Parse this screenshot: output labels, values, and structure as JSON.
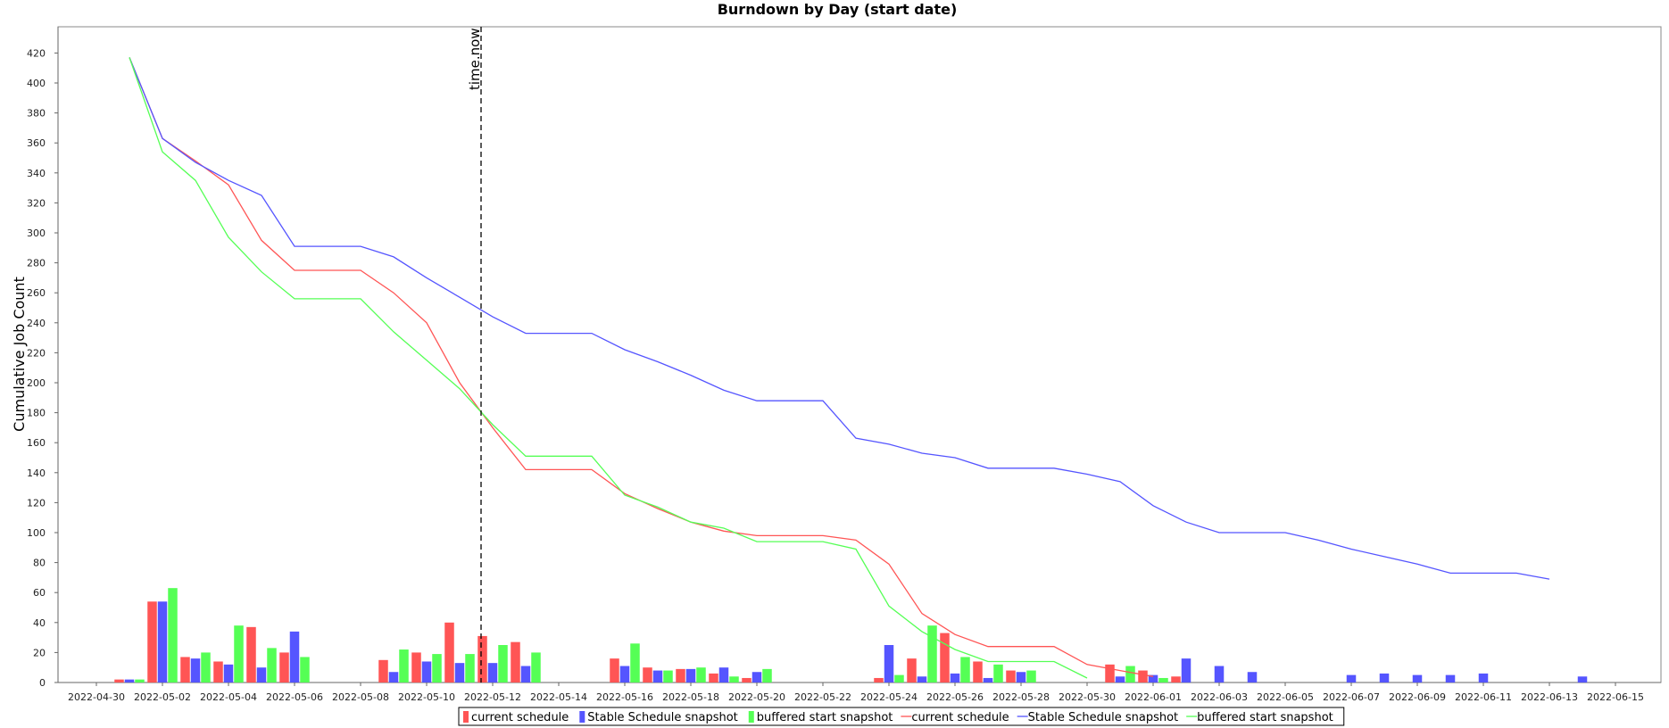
{
  "chart_data": {
    "type": "bar+line",
    "title": "Burndown by Day (start date)",
    "ylabel": "Cumulative Job Count",
    "xlabel": "",
    "ylim": [
      0,
      435
    ],
    "y_ticks": [
      0,
      20,
      40,
      60,
      80,
      100,
      120,
      140,
      160,
      180,
      200,
      220,
      240,
      260,
      280,
      300,
      320,
      340,
      360,
      380,
      400,
      420
    ],
    "x_start": "2022-04-30",
    "x_end": "2022-06-15",
    "x_tick_labels": [
      "2022-04-30",
      "2022-05-02",
      "2022-05-04",
      "2022-05-06",
      "2022-05-08",
      "2022-05-10",
      "2022-05-12",
      "2022-05-14",
      "2022-05-16",
      "2022-05-18",
      "2022-05-20",
      "2022-05-22",
      "2022-05-24",
      "2022-05-26",
      "2022-05-28",
      "2022-05-30",
      "2022-06-01",
      "2022-06-03",
      "2022-06-05",
      "2022-06-07",
      "2022-06-09",
      "2022-06-11",
      "2022-06-13",
      "2022-06-15"
    ],
    "grid": false,
    "legend_position": "bottom",
    "marker": {
      "label": "time.now",
      "x": "2022-05-12"
    },
    "bar_series": [
      {
        "name": "current schedule",
        "color": "#ff5555",
        "points": [
          [
            "2022-05-01",
            2
          ],
          [
            "2022-05-02",
            54
          ],
          [
            "2022-05-03",
            17
          ],
          [
            "2022-05-04",
            14
          ],
          [
            "2022-05-05",
            37
          ],
          [
            "2022-05-06",
            20
          ],
          [
            "2022-05-09",
            15
          ],
          [
            "2022-05-10",
            20
          ],
          [
            "2022-05-11",
            40
          ],
          [
            "2022-05-12",
            31
          ],
          [
            "2022-05-13",
            27
          ],
          [
            "2022-05-16",
            16
          ],
          [
            "2022-05-17",
            10
          ],
          [
            "2022-05-18",
            9
          ],
          [
            "2022-05-19",
            6
          ],
          [
            "2022-05-20",
            3
          ],
          [
            "2022-05-24",
            3
          ],
          [
            "2022-05-25",
            16
          ],
          [
            "2022-05-26",
            33
          ],
          [
            "2022-05-27",
            14
          ],
          [
            "2022-05-28",
            8
          ],
          [
            "2022-05-31",
            12
          ],
          [
            "2022-06-01",
            8
          ],
          [
            "2022-06-02",
            4
          ]
        ]
      },
      {
        "name": "Stable Schedule snapshot",
        "color": "#5555ff",
        "points": [
          [
            "2022-05-01",
            2
          ],
          [
            "2022-05-02",
            54
          ],
          [
            "2022-05-03",
            16
          ],
          [
            "2022-05-04",
            12
          ],
          [
            "2022-05-05",
            10
          ],
          [
            "2022-05-06",
            34
          ],
          [
            "2022-05-09",
            7
          ],
          [
            "2022-05-10",
            14
          ],
          [
            "2022-05-11",
            13
          ],
          [
            "2022-05-12",
            13
          ],
          [
            "2022-05-13",
            11
          ],
          [
            "2022-05-16",
            11
          ],
          [
            "2022-05-17",
            8
          ],
          [
            "2022-05-18",
            9
          ],
          [
            "2022-05-19",
            10
          ],
          [
            "2022-05-20",
            7
          ],
          [
            "2022-05-24",
            25
          ],
          [
            "2022-05-25",
            4
          ],
          [
            "2022-05-26",
            6
          ],
          [
            "2022-05-27",
            3
          ],
          [
            "2022-05-28",
            7
          ],
          [
            "2022-05-31",
            4
          ],
          [
            "2022-06-01",
            5
          ],
          [
            "2022-06-02",
            16
          ],
          [
            "2022-06-03",
            11
          ],
          [
            "2022-06-04",
            7
          ],
          [
            "2022-06-07",
            5
          ],
          [
            "2022-06-08",
            6
          ],
          [
            "2022-06-09",
            5
          ],
          [
            "2022-06-10",
            5
          ],
          [
            "2022-06-11",
            6
          ],
          [
            "2022-06-14",
            4
          ]
        ]
      },
      {
        "name": "buffered start snapshot",
        "color": "#55ff55",
        "points": [
          [
            "2022-05-01",
            2
          ],
          [
            "2022-05-02",
            63
          ],
          [
            "2022-05-03",
            20
          ],
          [
            "2022-05-04",
            38
          ],
          [
            "2022-05-05",
            23
          ],
          [
            "2022-05-06",
            17
          ],
          [
            "2022-05-09",
            22
          ],
          [
            "2022-05-10",
            19
          ],
          [
            "2022-05-11",
            19
          ],
          [
            "2022-05-12",
            25
          ],
          [
            "2022-05-13",
            20
          ],
          [
            "2022-05-16",
            26
          ],
          [
            "2022-05-17",
            8
          ],
          [
            "2022-05-18",
            10
          ],
          [
            "2022-05-19",
            4
          ],
          [
            "2022-05-20",
            9
          ],
          [
            "2022-05-24",
            5
          ],
          [
            "2022-05-25",
            38
          ],
          [
            "2022-05-26",
            17
          ],
          [
            "2022-05-27",
            12
          ],
          [
            "2022-05-28",
            8
          ],
          [
            "2022-05-31",
            11
          ],
          [
            "2022-06-01",
            3
          ]
        ]
      }
    ],
    "line_series": [
      {
        "name": "current schedule",
        "color": "#ff5555",
        "points": [
          [
            "2022-05-01",
            417
          ],
          [
            "2022-05-02",
            363
          ],
          [
            "2022-05-03",
            348
          ],
          [
            "2022-05-04",
            332
          ],
          [
            "2022-05-05",
            295
          ],
          [
            "2022-05-06",
            275
          ],
          [
            "2022-05-08",
            275
          ],
          [
            "2022-05-09",
            260
          ],
          [
            "2022-05-10",
            240
          ],
          [
            "2022-05-11",
            200
          ],
          [
            "2022-05-12",
            170
          ],
          [
            "2022-05-13",
            142
          ],
          [
            "2022-05-15",
            142
          ],
          [
            "2022-05-16",
            126
          ],
          [
            "2022-05-17",
            116
          ],
          [
            "2022-05-18",
            107
          ],
          [
            "2022-05-19",
            101
          ],
          [
            "2022-05-20",
            98
          ],
          [
            "2022-05-22",
            98
          ],
          [
            "2022-05-23",
            95
          ],
          [
            "2022-05-24",
            79
          ],
          [
            "2022-05-25",
            46
          ],
          [
            "2022-05-26",
            32
          ],
          [
            "2022-05-27",
            24
          ],
          [
            "2022-05-29",
            24
          ],
          [
            "2022-05-30",
            12
          ],
          [
            "2022-05-31",
            8
          ],
          [
            "2022-06-01",
            4
          ]
        ]
      },
      {
        "name": "Stable Schedule snapshot",
        "color": "#5555ff",
        "points": [
          [
            "2022-05-01",
            417
          ],
          [
            "2022-05-02",
            363
          ],
          [
            "2022-05-03",
            347
          ],
          [
            "2022-05-04",
            335
          ],
          [
            "2022-05-05",
            325
          ],
          [
            "2022-05-06",
            291
          ],
          [
            "2022-05-08",
            291
          ],
          [
            "2022-05-09",
            284
          ],
          [
            "2022-05-10",
            270
          ],
          [
            "2022-05-11",
            257
          ],
          [
            "2022-05-12",
            244
          ],
          [
            "2022-05-13",
            233
          ],
          [
            "2022-05-15",
            233
          ],
          [
            "2022-05-16",
            222
          ],
          [
            "2022-05-17",
            214
          ],
          [
            "2022-05-18",
            205
          ],
          [
            "2022-05-19",
            195
          ],
          [
            "2022-05-20",
            188
          ],
          [
            "2022-05-22",
            188
          ],
          [
            "2022-05-23",
            163
          ],
          [
            "2022-05-24",
            159
          ],
          [
            "2022-05-25",
            153
          ],
          [
            "2022-05-26",
            150
          ],
          [
            "2022-05-27",
            143
          ],
          [
            "2022-05-29",
            143
          ],
          [
            "2022-05-30",
            139
          ],
          [
            "2022-05-31",
            134
          ],
          [
            "2022-06-01",
            118
          ],
          [
            "2022-06-02",
            107
          ],
          [
            "2022-06-03",
            100
          ],
          [
            "2022-06-05",
            100
          ],
          [
            "2022-06-06",
            95
          ],
          [
            "2022-06-07",
            89
          ],
          [
            "2022-06-08",
            84
          ],
          [
            "2022-06-09",
            79
          ],
          [
            "2022-06-10",
            73
          ],
          [
            "2022-06-12",
            73
          ],
          [
            "2022-06-13",
            69
          ]
        ]
      },
      {
        "name": "buffered start snapshot",
        "color": "#55ff55",
        "points": [
          [
            "2022-05-01",
            417
          ],
          [
            "2022-05-02",
            354
          ],
          [
            "2022-05-03",
            335
          ],
          [
            "2022-05-04",
            297
          ],
          [
            "2022-05-05",
            274
          ],
          [
            "2022-05-06",
            256
          ],
          [
            "2022-05-08",
            256
          ],
          [
            "2022-05-09",
            234
          ],
          [
            "2022-05-10",
            215
          ],
          [
            "2022-05-11",
            196
          ],
          [
            "2022-05-12",
            172
          ],
          [
            "2022-05-13",
            151
          ],
          [
            "2022-05-15",
            151
          ],
          [
            "2022-05-16",
            125
          ],
          [
            "2022-05-17",
            117
          ],
          [
            "2022-05-18",
            107
          ],
          [
            "2022-05-19",
            103
          ],
          [
            "2022-05-20",
            94
          ],
          [
            "2022-05-22",
            94
          ],
          [
            "2022-05-23",
            89
          ],
          [
            "2022-05-24",
            51
          ],
          [
            "2022-05-25",
            34
          ],
          [
            "2022-05-26",
            22
          ],
          [
            "2022-05-27",
            14
          ],
          [
            "2022-05-29",
            14
          ],
          [
            "2022-05-30",
            3
          ]
        ]
      }
    ],
    "legend": [
      {
        "label": "current schedule",
        "kind": "bar",
        "color": "#ff5555"
      },
      {
        "label": "Stable Schedule snapshot",
        "kind": "bar",
        "color": "#5555ff"
      },
      {
        "label": "buffered start snapshot",
        "kind": "bar",
        "color": "#55ff55"
      },
      {
        "label": "current schedule",
        "kind": "line",
        "color": "#ff5555"
      },
      {
        "label": "Stable Schedule snapshot",
        "kind": "line",
        "color": "#5555ff"
      },
      {
        "label": "buffered start snapshot",
        "kind": "line",
        "color": "#55ff55"
      }
    ]
  }
}
